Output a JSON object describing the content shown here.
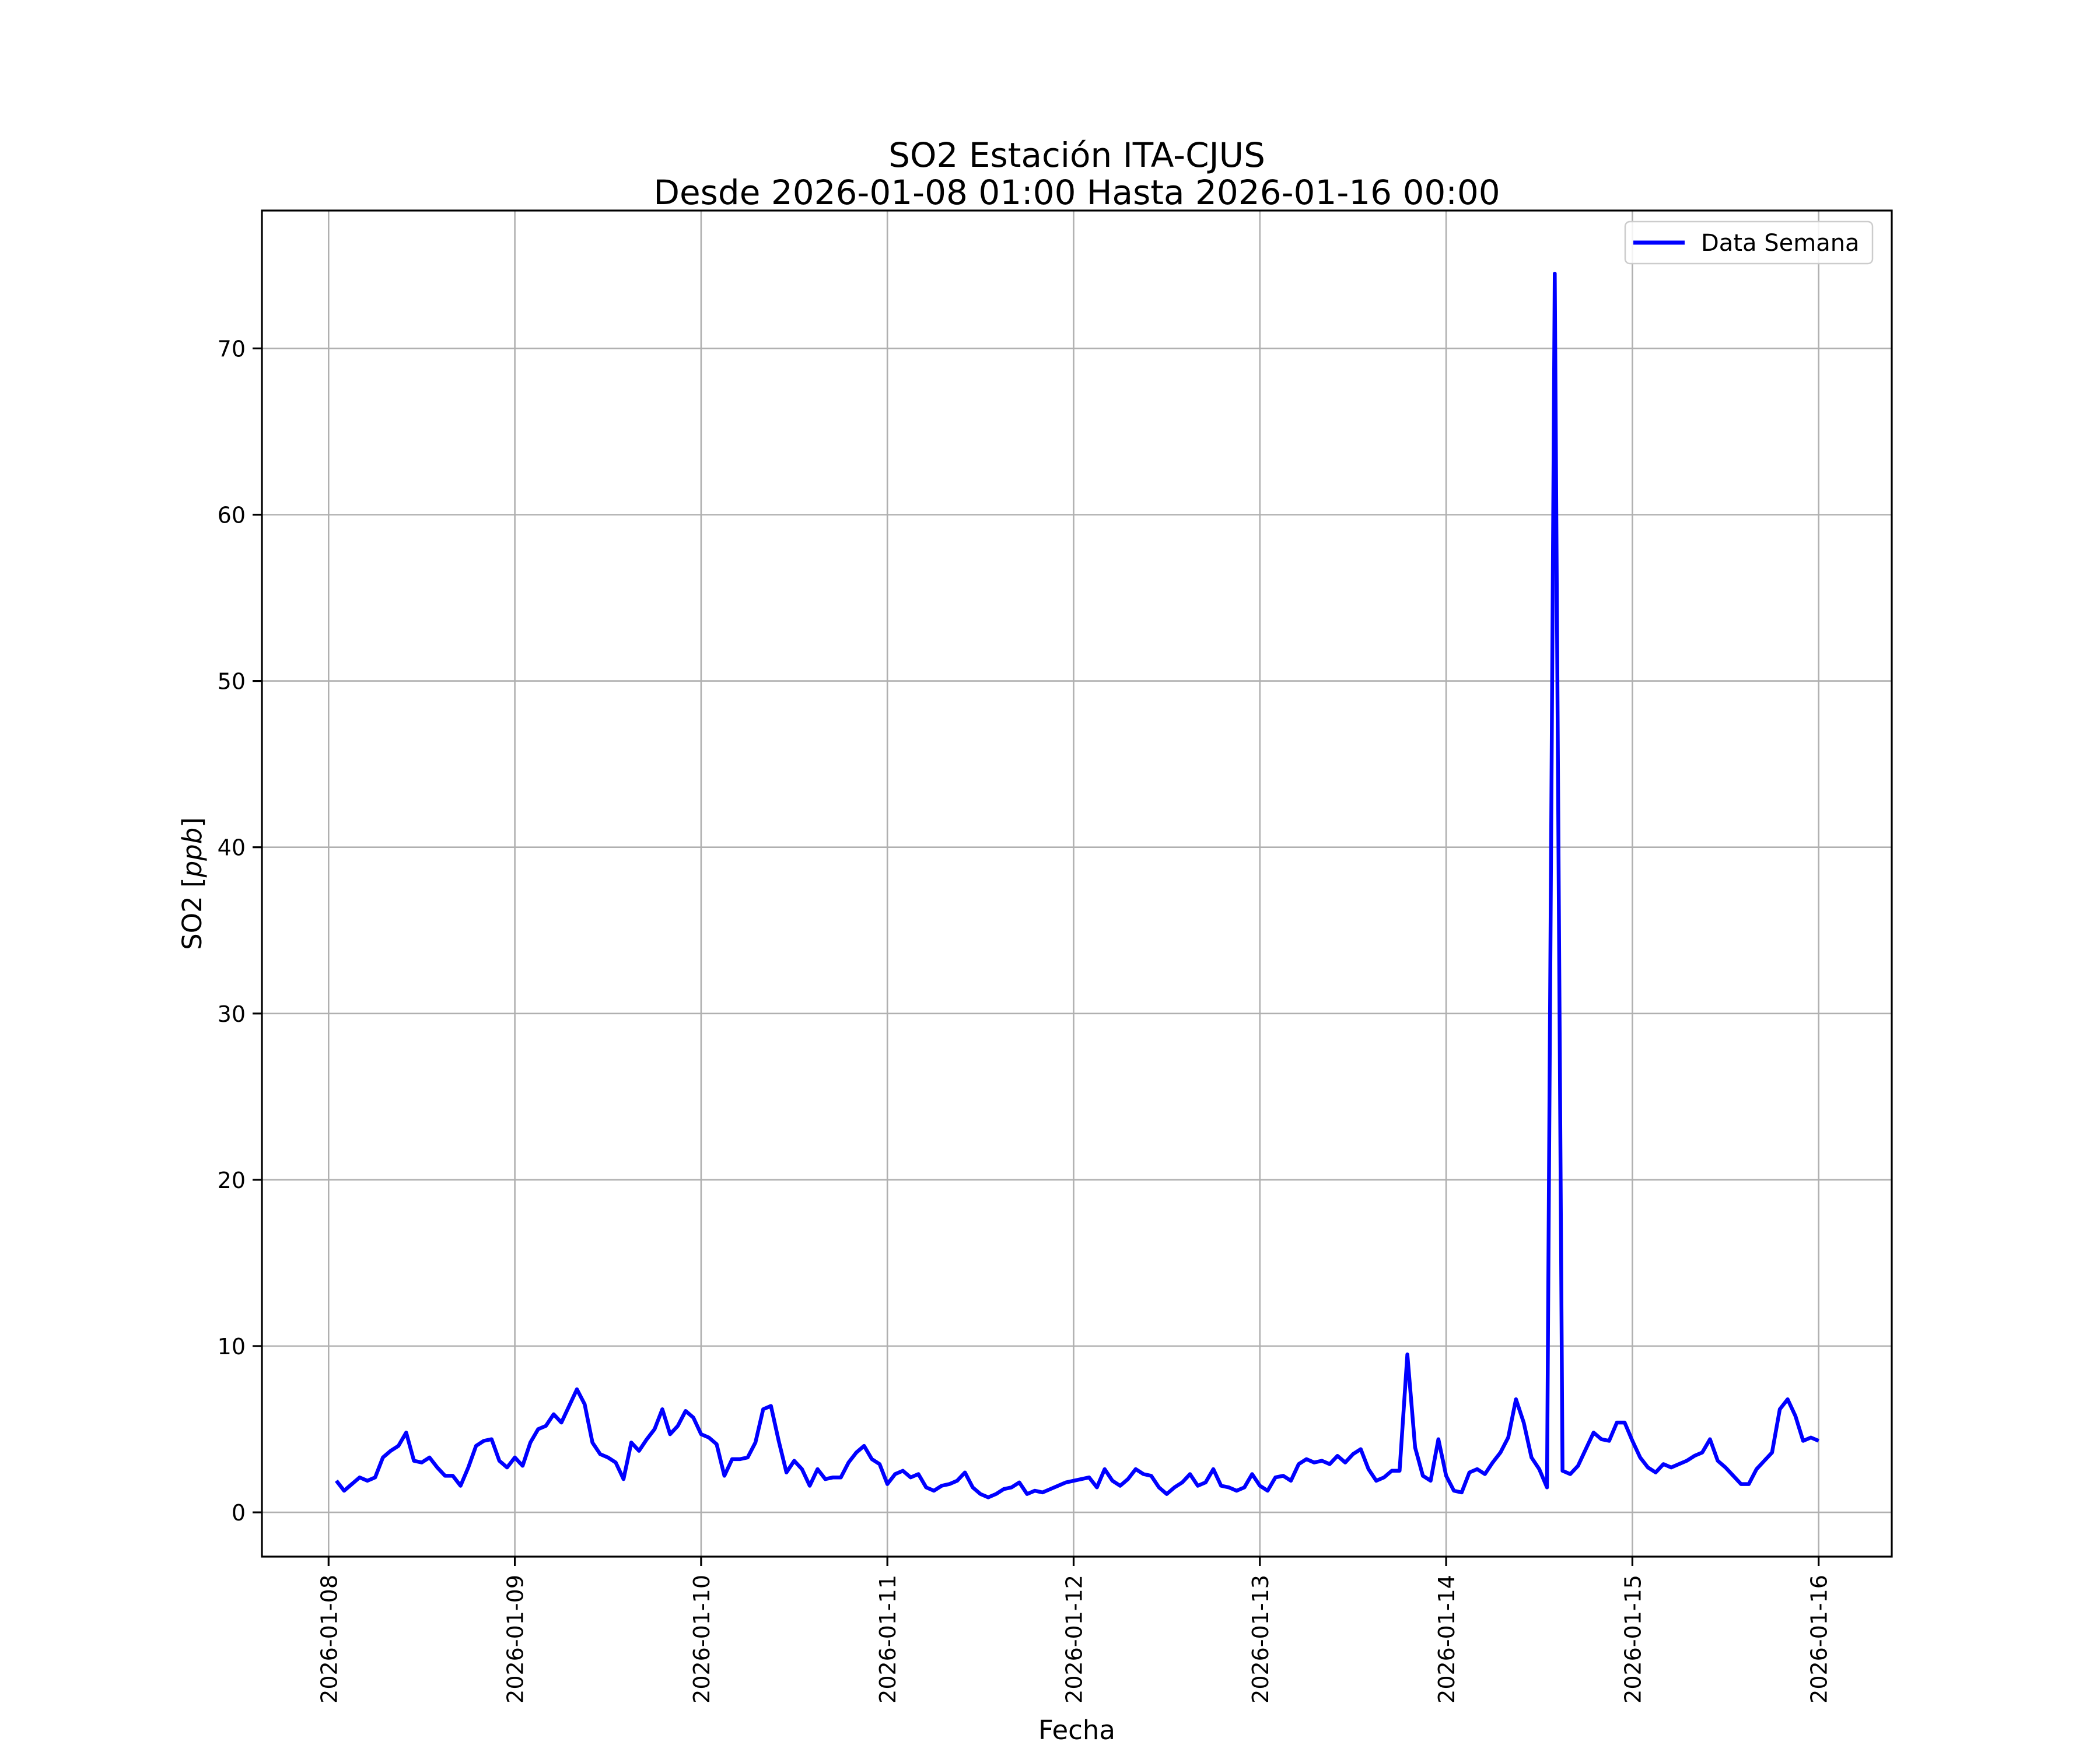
{
  "figure": {
    "title_line1": "SO2 Estación ITA-CJUS",
    "title_line2": "Desde 2026-01-08 01:00 Hasta 2026-01-16 00:00",
    "xlabel": "Fecha",
    "ylabel_prefix": "SO2 [",
    "ylabel_italic": "ppb",
    "ylabel_suffix": "]",
    "legend_label": "Data Semana"
  },
  "colors": {
    "line": "#0000ff",
    "grid": "#b0b0b0",
    "spine": "#000000",
    "tick": "#000000",
    "legend_border": "#cccccc",
    "background": "#ffffff",
    "text": "#000000"
  },
  "chart_data": {
    "type": "line",
    "title": "SO2 Estación ITA-CJUS",
    "subtitle": "Desde 2026-01-08 01:00 Hasta 2026-01-16 00:00",
    "xlabel": "Fecha",
    "ylabel": "SO2 [ppb]",
    "grid": true,
    "legend_position": "upper right",
    "x_start": "2026-01-08 01:00",
    "x_end": "2026-01-16 00:00",
    "interval_hours": 1,
    "x_tick_labels": [
      "2026-01-08",
      "2026-01-09",
      "2026-01-10",
      "2026-01-11",
      "2026-01-12",
      "2026-01-13",
      "2026-01-14",
      "2026-01-15",
      "2026-01-16"
    ],
    "y_ticks": [
      0,
      10,
      20,
      30,
      40,
      50,
      60,
      70
    ],
    "ylim": [
      -2.8,
      78.3
    ],
    "series": [
      {
        "name": "Data Semana",
        "color": "#0000ff",
        "values": [
          1.9,
          1.3,
          1.7,
          2.1,
          1.9,
          2.1,
          3.3,
          3.7,
          4.0,
          4.8,
          3.1,
          3.0,
          3.3,
          2.7,
          2.2,
          2.2,
          1.6,
          2.7,
          4.0,
          4.3,
          4.4,
          3.1,
          2.7,
          3.3,
          2.8,
          4.2,
          5.0,
          5.2,
          5.9,
          5.4,
          6.4,
          7.4,
          6.5,
          4.2,
          3.5,
          3.3,
          3.0,
          2.0,
          4.2,
          3.7,
          4.4,
          5.0,
          6.2,
          4.7,
          5.2,
          6.1,
          5.7,
          4.7,
          4.5,
          4.1,
          2.2,
          3.2,
          3.2,
          3.3,
          4.2,
          6.2,
          6.4,
          4.3,
          2.4,
          3.1,
          2.6,
          1.6,
          2.6,
          2.0,
          2.1,
          2.1,
          3.0,
          3.6,
          4.0,
          3.2,
          2.9,
          1.7,
          2.3,
          2.5,
          2.1,
          2.3,
          1.5,
          1.3,
          1.6,
          1.7,
          1.9,
          2.4,
          1.5,
          1.1,
          0.9,
          1.1,
          1.4,
          1.5,
          1.8,
          1.1,
          1.3,
          1.2,
          1.4,
          1.6,
          1.8,
          1.9,
          2.0,
          2.1,
          1.5,
          2.6,
          1.9,
          1.6,
          2.0,
          2.6,
          2.3,
          2.2,
          1.5,
          1.1,
          1.5,
          1.8,
          2.3,
          1.6,
          1.8,
          2.6,
          1.6,
          1.5,
          1.3,
          1.5,
          2.3,
          1.6,
          1.3,
          2.1,
          2.2,
          1.9,
          2.9,
          3.2,
          3.0,
          3.1,
          2.9,
          3.4,
          3.0,
          3.5,
          3.8,
          2.6,
          1.9,
          2.1,
          2.5,
          2.5,
          9.5,
          3.9,
          2.2,
          1.9,
          4.4,
          2.2,
          1.3,
          1.2,
          2.4,
          2.6,
          2.3,
          3.0,
          3.6,
          4.5,
          6.8,
          5.4,
          3.3,
          2.6,
          1.5,
          74.5,
          2.5,
          2.3,
          2.8,
          3.8,
          4.8,
          4.4,
          4.3,
          5.4,
          5.4,
          4.3,
          3.3,
          2.7,
          2.4,
          2.9,
          2.7,
          2.9,
          3.1,
          3.4,
          3.6,
          4.4,
          3.1,
          2.7,
          2.2,
          1.7,
          1.7,
          2.6,
          3.1,
          3.6,
          6.2,
          6.8,
          5.8,
          4.3,
          4.5,
          4.3
        ]
      }
    ]
  }
}
